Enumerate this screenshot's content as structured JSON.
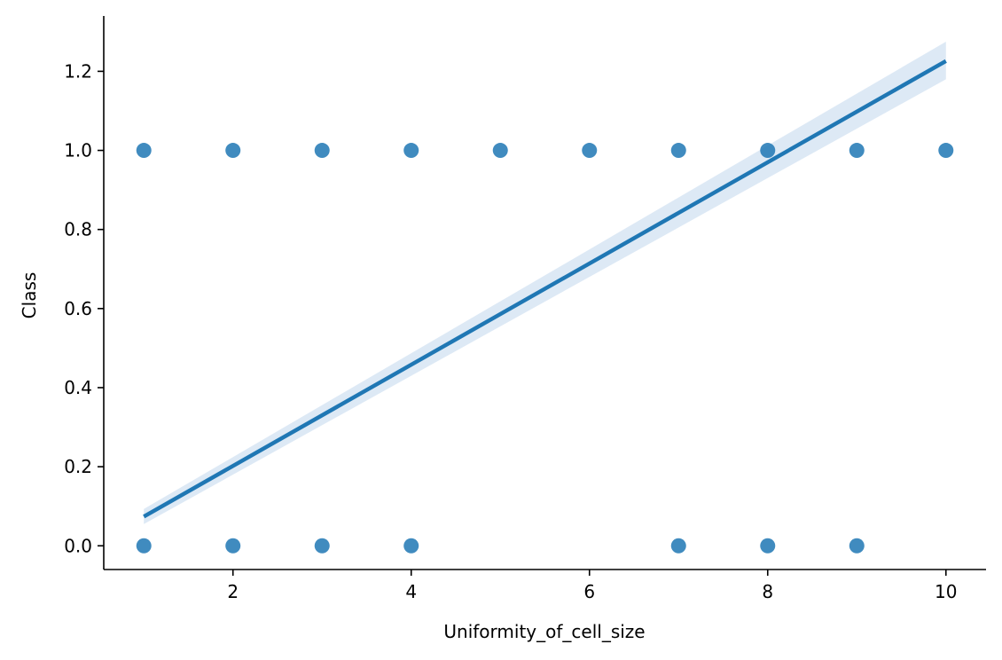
{
  "chart_data": {
    "type": "scatter",
    "title": "",
    "xlabel": "Uniformity_of_cell_size",
    "ylabel": "Class",
    "xlim": [
      0.55,
      10.45
    ],
    "ylim": [
      -0.06,
      1.34
    ],
    "xticks": [
      2,
      4,
      6,
      8,
      10
    ],
    "yticks": [
      0.0,
      0.2,
      0.4,
      0.6,
      0.8,
      1.0,
      1.2
    ],
    "ytick_labels": [
      "0.0",
      "0.2",
      "0.4",
      "0.6",
      "0.8",
      "1.0",
      "1.2"
    ],
    "grid": false,
    "colors": {
      "points": "#1f77b4",
      "line": "#1f77b4",
      "band": "#c6dbef"
    },
    "series": [
      {
        "kind": "scatter",
        "x": [
          1,
          2,
          3,
          4,
          5,
          6,
          7,
          8,
          9,
          10,
          1,
          2,
          3,
          4,
          7,
          8,
          9
        ],
        "y": [
          1,
          1,
          1,
          1,
          1,
          1,
          1,
          1,
          1,
          1,
          0,
          0,
          0,
          0,
          0,
          0,
          0
        ]
      },
      {
        "kind": "regression",
        "x": [
          1,
          10
        ],
        "y": [
          0.074,
          1.226
        ],
        "ci_lower": [
          0.055,
          1.18
        ],
        "ci_upper": [
          0.093,
          1.275
        ]
      }
    ]
  }
}
